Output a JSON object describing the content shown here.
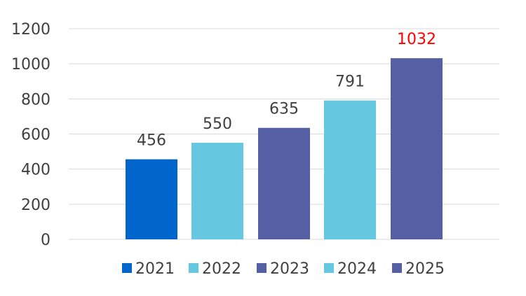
{
  "chart_data": {
    "type": "bar",
    "categories": [
      "2021",
      "2022",
      "2023",
      "2024",
      "2025"
    ],
    "values": [
      456,
      550,
      635,
      791,
      1032
    ],
    "data_labels": [
      "456",
      "550",
      "635",
      "791",
      "1032"
    ],
    "bar_colors": [
      "#0066cc",
      "#66c7e0",
      "#5460a3",
      "#66c7e0",
      "#5460a3"
    ],
    "label_colors": [
      "#404040",
      "#404040",
      "#404040",
      "#404040",
      "#ff0000"
    ],
    "ylim": [
      0,
      1200
    ],
    "yticks": [
      0,
      200,
      400,
      600,
      800,
      1000,
      1200
    ],
    "ytick_labels": [
      "0",
      "200",
      "400",
      "600",
      "800",
      "1000",
      "1200"
    ],
    "legend": {
      "placement": "bottom",
      "entries": [
        "2021",
        "2022",
        "2023",
        "2024",
        "2025"
      ]
    },
    "grid": true,
    "title": "",
    "xlabel": "",
    "ylabel": ""
  }
}
